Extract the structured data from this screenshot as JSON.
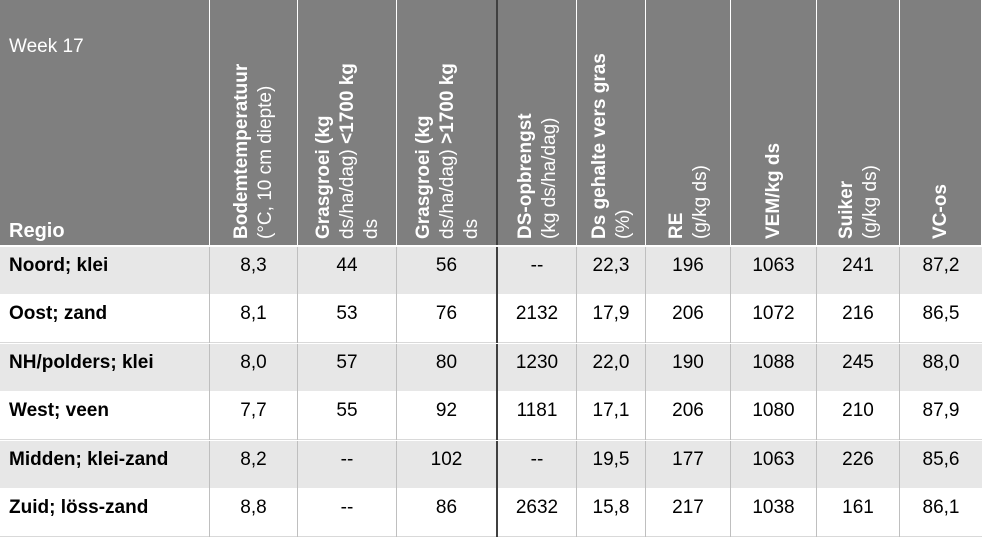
{
  "table": {
    "week_label": "Week 17",
    "region_header": "Regio",
    "columns": [
      {
        "line1": "Bodemtemperatuur",
        "line2": "(°C, 10 cm diepte)",
        "line3": ""
      },
      {
        "line1": "Grasgroei (kg",
        "line2": "ds/ha/dag) <1700 kg",
        "line3": "ds"
      },
      {
        "line1": "Grasgroei (kg",
        "line2": "ds/ha/dag) >1700 kg",
        "line3": "ds"
      },
      {
        "line1": "DS-opbrengst",
        "line2": "(kg ds/ha/dag)",
        "line3": ""
      },
      {
        "line1": "Ds gehalte vers gras",
        "line2": "(%)",
        "line3": ""
      },
      {
        "line1": "RE",
        "line2": "(g/kg ds)",
        "line3": ""
      },
      {
        "line1": "VEM/kg ds",
        "line2": "",
        "line3": ""
      },
      {
        "line1": "Suiker",
        "line2": "(g/kg ds)",
        "line3": ""
      },
      {
        "line1": "VC-os",
        "line2": "",
        "line3": ""
      }
    ],
    "rows": [
      {
        "region": "Noord; klei",
        "values": [
          "8,3",
          "44",
          "56",
          "--",
          "22,3",
          "196",
          "1063",
          "241",
          "87,2"
        ]
      },
      {
        "region": "Oost; zand",
        "values": [
          "8,1",
          "53",
          "76",
          "2132",
          "17,9",
          "206",
          "1072",
          "216",
          "86,5"
        ]
      },
      {
        "region": "NH/polders; klei",
        "values": [
          "8,0",
          "57",
          "80",
          "1230",
          "22,0",
          "190",
          "1088",
          "245",
          "88,0"
        ]
      },
      {
        "region": "West; veen",
        "values": [
          "7,7",
          "55",
          "92",
          "1181",
          "17,1",
          "206",
          "1080",
          "210",
          "87,9"
        ]
      },
      {
        "region": "Midden; klei-zand",
        "values": [
          "8,2",
          "--",
          "102",
          "--",
          "19,5",
          "177",
          "1063",
          "226",
          "85,6"
        ]
      },
      {
        "region": "Zuid; löss-zand",
        "values": [
          "8,8",
          "--",
          "86",
          "2632",
          "15,8",
          "217",
          "1038",
          "161",
          "86,1"
        ]
      }
    ]
  }
}
